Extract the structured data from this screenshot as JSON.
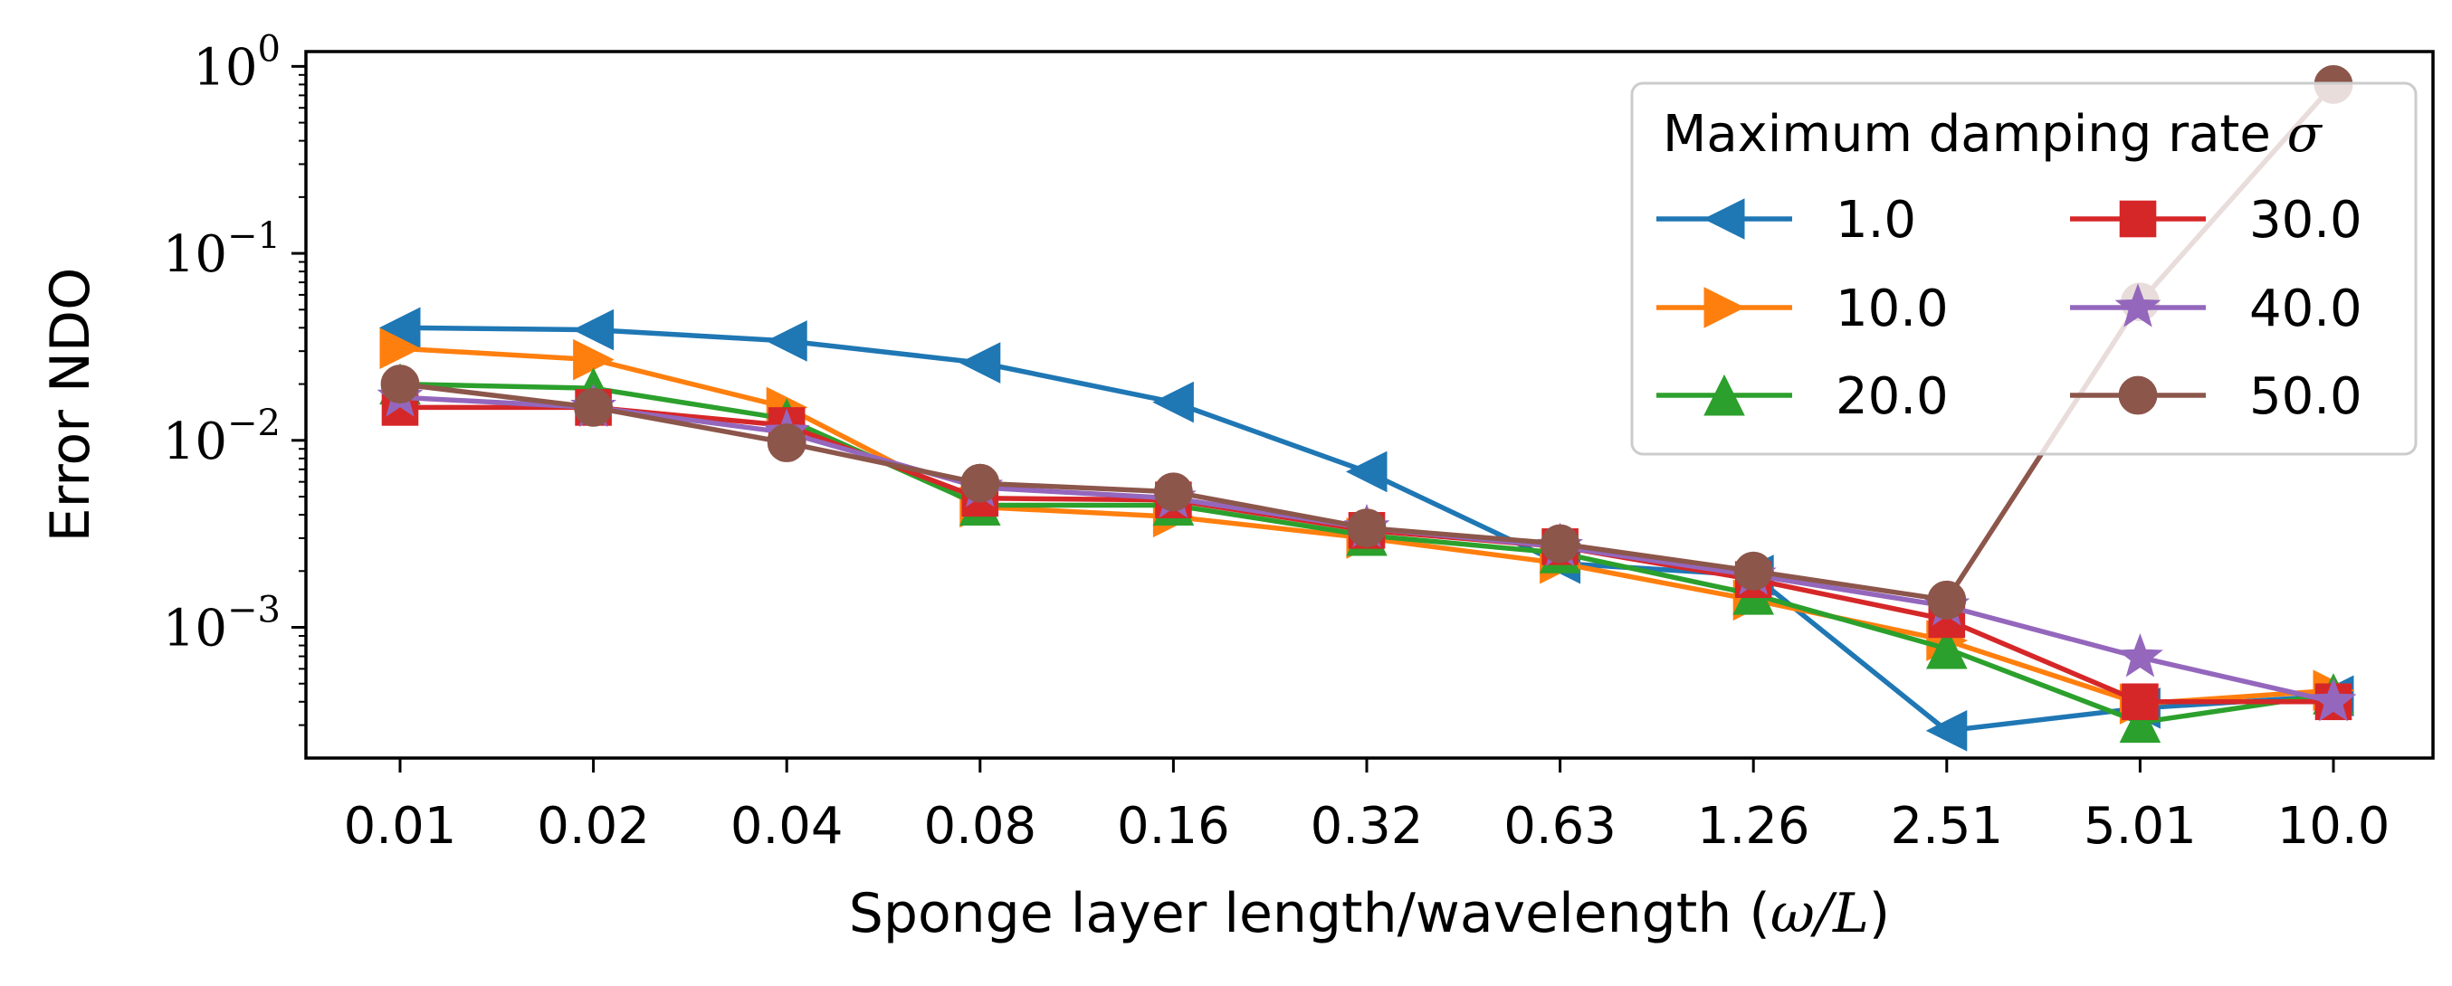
{
  "chart_data": {
    "type": "line",
    "xlabel": "Sponge layer length/wavelength (",
    "xlabel_math": "ω/L",
    "xlabel_close": ")",
    "ylabel": "Error NDO",
    "yscale": "log",
    "ylim": [
      0.0002,
      1.2
    ],
    "categories": [
      "0.01",
      "0.02",
      "0.04",
      "0.08",
      "0.16",
      "0.32",
      "0.63",
      "1.26",
      "2.51",
      "5.01",
      "10.0"
    ],
    "ytick_base": "10",
    "yticks": [
      {
        "value": 1,
        "exponent": "0"
      },
      {
        "value": 0.1,
        "exponent": "−1"
      },
      {
        "value": 0.01,
        "exponent": "−2"
      },
      {
        "value": 0.001,
        "exponent": "−3"
      }
    ],
    "legend": {
      "title": "Maximum damping rate ",
      "title_math": "σ",
      "location": "upper right",
      "columns": 2
    },
    "series": [
      {
        "name": "1.0",
        "color": "#1f77b4",
        "marker": "triangle-left",
        "values": [
          0.04,
          0.039,
          0.034,
          0.026,
          0.016,
          0.0068,
          0.0022,
          0.0019,
          0.00028,
          0.00037,
          0.00043
        ]
      },
      {
        "name": "10.0",
        "color": "#ff7f0e",
        "marker": "triangle-right",
        "values": [
          0.031,
          0.027,
          0.015,
          0.0044,
          0.0039,
          0.003,
          0.0022,
          0.0014,
          0.00085,
          0.00039,
          0.00046
        ]
      },
      {
        "name": "20.0",
        "color": "#2ca02c",
        "marker": "triangle-up",
        "values": [
          0.02,
          0.019,
          0.013,
          0.0045,
          0.0045,
          0.0031,
          0.0025,
          0.0015,
          0.00077,
          0.00031,
          0.00044
        ]
      },
      {
        "name": "30.0",
        "color": "#d62728",
        "marker": "square",
        "values": [
          0.015,
          0.015,
          0.012,
          0.0049,
          0.0048,
          0.0033,
          0.0027,
          0.0018,
          0.0011,
          0.0004,
          0.0004
        ]
      },
      {
        "name": "40.0",
        "color": "#9467bd",
        "marker": "star",
        "values": [
          0.017,
          0.015,
          0.011,
          0.0056,
          0.0049,
          0.0034,
          0.0027,
          0.0019,
          0.0013,
          0.00069,
          0.0004
        ]
      },
      {
        "name": "50.0",
        "color": "#8c564b",
        "marker": "circle",
        "values": [
          0.02,
          0.015,
          0.0097,
          0.0059,
          0.0053,
          0.0034,
          0.0028,
          0.002,
          0.0014,
          0.055,
          0.8
        ]
      }
    ]
  }
}
